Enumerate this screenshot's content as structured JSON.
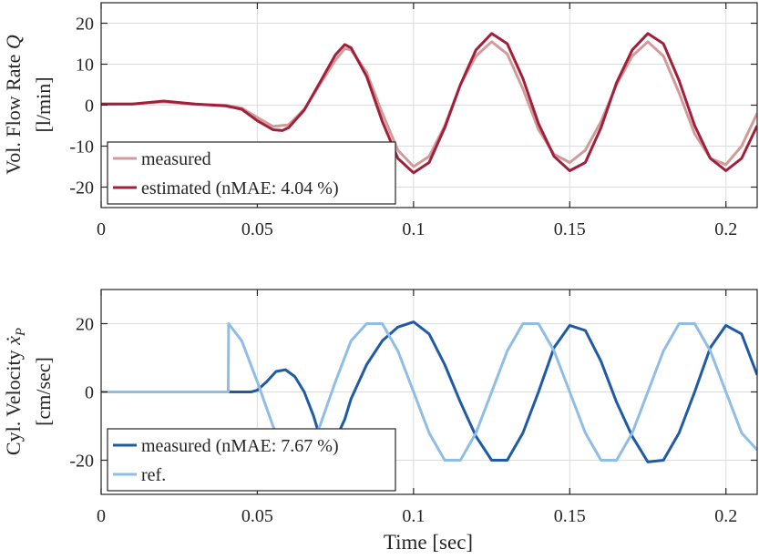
{
  "chart_data": [
    {
      "type": "line",
      "ylabel_lines": [
        "Vol. Flow Rate Q",
        "[l/min]"
      ],
      "xlim": [
        0,
        0.21
      ],
      "ylim": [
        -25,
        25
      ],
      "xticks": [
        0,
        0.05,
        0.1,
        0.15,
        0.2
      ],
      "xticklabels": [
        "0",
        "0.05",
        "0.1",
        "0.15",
        "0.2"
      ],
      "yticks": [
        -20,
        -10,
        0,
        10,
        20
      ],
      "yticklabels": [
        "-20",
        "-10",
        "0",
        "10",
        "20"
      ],
      "grid": true,
      "legend_placement": "bottom-left",
      "series": [
        {
          "name": "measured",
          "color": "#d39a9a",
          "x": [
            0,
            0.01,
            0.02,
            0.03,
            0.04,
            0.045,
            0.05,
            0.055,
            0.06,
            0.065,
            0.07,
            0.075,
            0.078,
            0.08,
            0.085,
            0.09,
            0.095,
            0.1,
            0.105,
            0.11,
            0.115,
            0.12,
            0.125,
            0.13,
            0.135,
            0.14,
            0.145,
            0.15,
            0.155,
            0.16,
            0.165,
            0.17,
            0.175,
            0.18,
            0.185,
            0.19,
            0.195,
            0.2,
            0.205,
            0.21
          ],
          "y": [
            0.3,
            0.3,
            0.8,
            0.2,
            0,
            -0.7,
            -3,
            -5.2,
            -4.8,
            -1,
            5,
            11,
            13.8,
            13.5,
            8,
            -2,
            -11,
            -15,
            -12.5,
            -5,
            5,
            12,
            15.5,
            12.5,
            4,
            -6,
            -12,
            -14,
            -11,
            -4,
            5,
            12,
            15.5,
            12,
            3,
            -7,
            -13,
            -14.5,
            -10,
            -2
          ]
        },
        {
          "name": "estimated (nMAE: 4.04 %)",
          "color": "#a11f3a",
          "x": [
            0,
            0.01,
            0.02,
            0.03,
            0.04,
            0.045,
            0.05,
            0.055,
            0.058,
            0.06,
            0.065,
            0.07,
            0.075,
            0.078,
            0.08,
            0.085,
            0.09,
            0.095,
            0.1,
            0.105,
            0.11,
            0.115,
            0.12,
            0.125,
            0.13,
            0.135,
            0.14,
            0.145,
            0.15,
            0.155,
            0.16,
            0.165,
            0.17,
            0.175,
            0.18,
            0.185,
            0.19,
            0.195,
            0.2,
            0.205,
            0.21
          ],
          "y": [
            0.3,
            0.3,
            1,
            0.3,
            -0.2,
            -1,
            -3.8,
            -6,
            -6.2,
            -5.5,
            -1.2,
            5.5,
            12.3,
            14.8,
            14,
            7,
            -4,
            -13,
            -16.5,
            -14,
            -5.5,
            5,
            13.5,
            17.5,
            15,
            6.5,
            -4.5,
            -12.5,
            -16,
            -14,
            -5.5,
            5.5,
            13.5,
            17.5,
            15,
            6,
            -5,
            -13,
            -16,
            -13,
            -5
          ]
        }
      ]
    },
    {
      "type": "line",
      "xlabel": "Time [sec]",
      "ylabel_lines": [
        "Cyl. Velocity x_P",
        "[cm/sec]"
      ],
      "xlim": [
        0,
        0.21
      ],
      "ylim": [
        -30,
        30
      ],
      "xticks": [
        0,
        0.05,
        0.1,
        0.15,
        0.2
      ],
      "xticklabels": [
        "0",
        "0.05",
        "0.1",
        "0.15",
        "0.2"
      ],
      "yticks": [
        -20,
        0,
        20
      ],
      "yticklabels": [
        "-20",
        "0",
        "20"
      ],
      "grid": true,
      "legend_placement": "bottom-left",
      "series": [
        {
          "name": "measured (nMAE: 7.67 %)",
          "color": "#1f5aa6",
          "x": [
            0,
            0.048,
            0.05,
            0.053,
            0.056,
            0.059,
            0.062,
            0.065,
            0.068,
            0.07,
            0.072,
            0.075,
            0.078,
            0.08,
            0.085,
            0.09,
            0.095,
            0.1,
            0.105,
            0.11,
            0.115,
            0.12,
            0.125,
            0.13,
            0.135,
            0.14,
            0.145,
            0.15,
            0.155,
            0.16,
            0.165,
            0.17,
            0.175,
            0.18,
            0.185,
            0.19,
            0.195,
            0.2,
            0.205,
            0.21
          ],
          "y": [
            0,
            0,
            0.5,
            3,
            6,
            6.5,
            4.5,
            0,
            -7,
            -13,
            -16,
            -14,
            -8,
            -2,
            8,
            15,
            19,
            20.5,
            17,
            8,
            -3,
            -13,
            -20,
            -20,
            -12,
            0,
            13,
            19.5,
            18,
            9,
            -3,
            -13,
            -20.5,
            -20,
            -12,
            0,
            13,
            19.5,
            17,
            5
          ]
        },
        {
          "name": "ref.",
          "color": "#8fbde6",
          "x": [
            0,
            0.0407,
            0.0408,
            0.045,
            0.05,
            0.055,
            0.06,
            0.065,
            0.07,
            0.075,
            0.08,
            0.085,
            0.09,
            0.095,
            0.1,
            0.105,
            0.11,
            0.115,
            0.12,
            0.125,
            0.13,
            0.135,
            0.14,
            0.145,
            0.15,
            0.155,
            0.16,
            0.165,
            0.17,
            0.175,
            0.18,
            0.185,
            0.19,
            0.195,
            0.2,
            0.205,
            0.21
          ],
          "y": [
            0,
            0,
            20,
            15,
            3,
            -10,
            -19,
            -19,
            -10,
            3,
            15,
            20,
            20,
            12,
            0,
            -12,
            -20,
            -20,
            -12,
            0,
            12,
            20,
            20,
            12,
            0,
            -12,
            -20,
            -20,
            -12,
            0,
            12,
            20,
            20,
            12,
            0,
            -12,
            -17
          ]
        }
      ]
    }
  ]
}
